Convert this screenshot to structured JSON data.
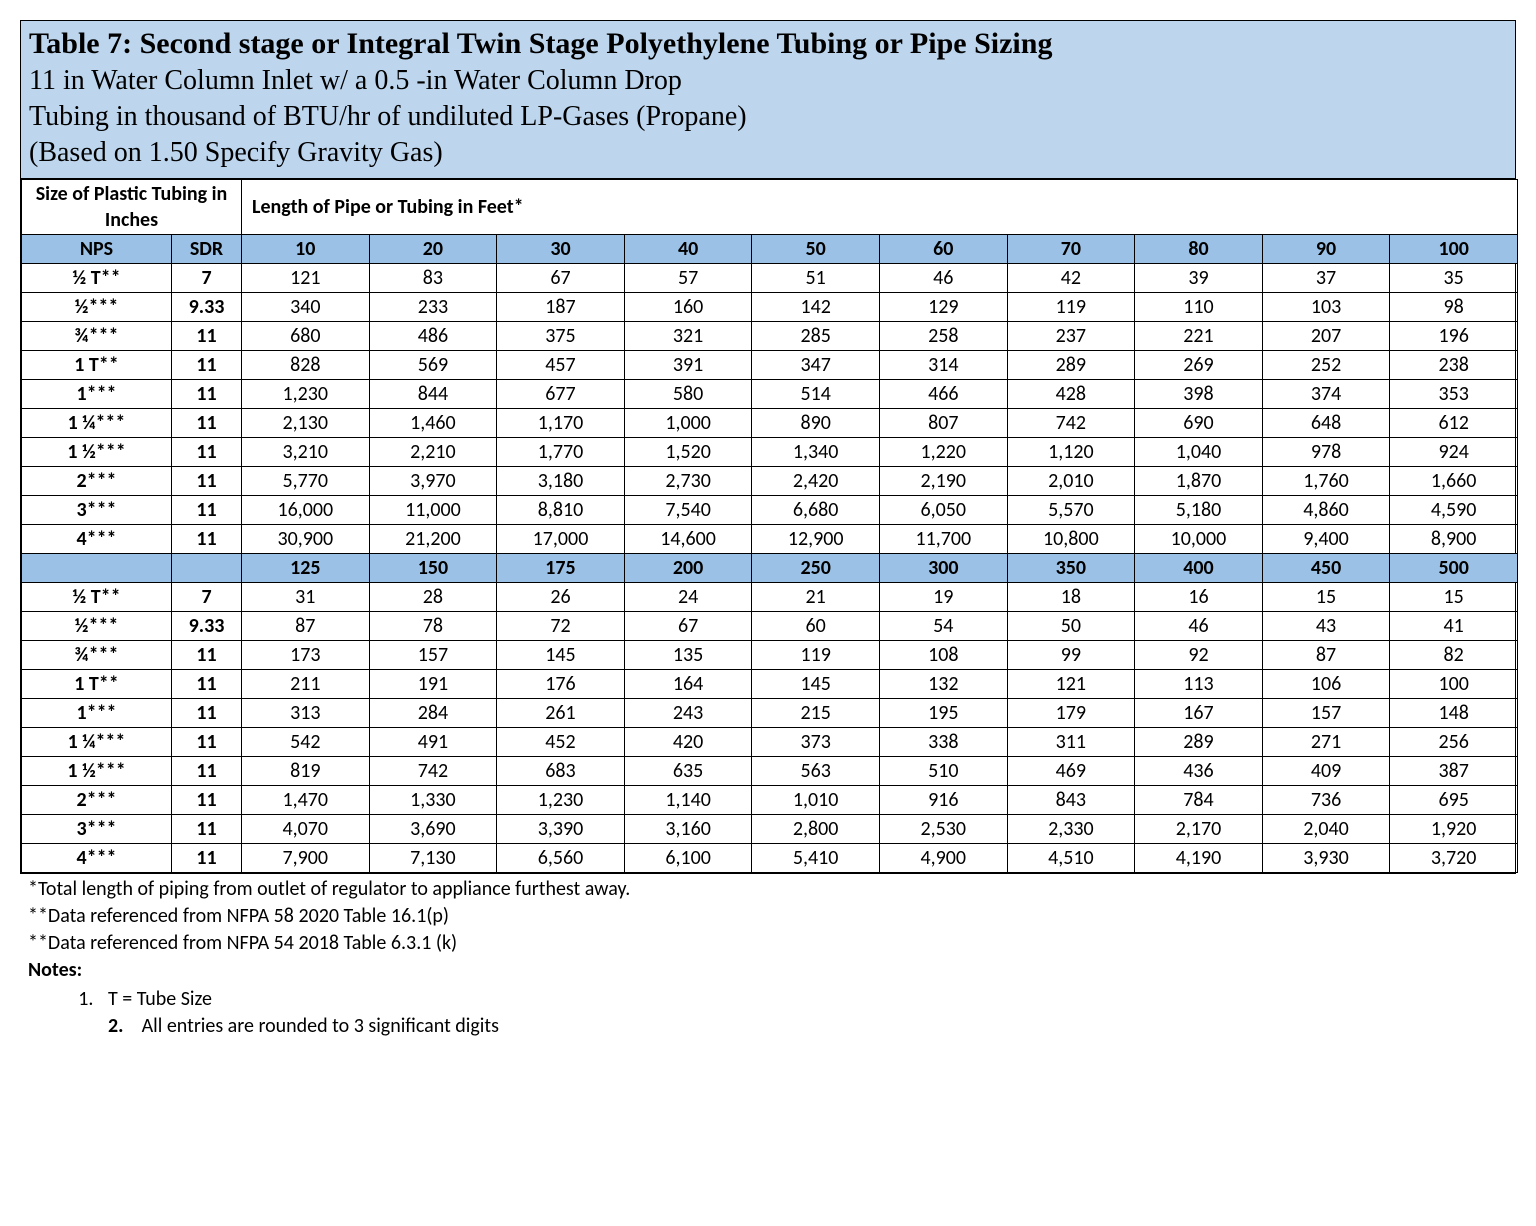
{
  "title": {
    "main": "Table 7: Second stage or Integral Twin Stage Polyethylene Tubing or Pipe Sizing",
    "sub1": "11 in Water Column Inlet w/ a 0.5 -in Water Column Drop",
    "sub2": "Tubing in thousand of BTU/hr of undiluted LP-Gases (Propane)",
    "sub3": "(Based on 1.50 Specify Gravity Gas)"
  },
  "group_headers": {
    "size": "Size of Plastic Tubing in Inches",
    "length": "Length of Pipe or Tubing in Feet*"
  },
  "col_headers": {
    "nps": "NPS",
    "sdr": "SDR",
    "lengths1": [
      "10",
      "20",
      "30",
      "40",
      "50",
      "60",
      "70",
      "80",
      "90",
      "100"
    ],
    "lengths2": [
      "125",
      "150",
      "175",
      "200",
      "250",
      "300",
      "350",
      "400",
      "450",
      "500"
    ]
  },
  "rows1": [
    {
      "nps": "½ T**",
      "sdr": "7",
      "v": [
        "121",
        "83",
        "67",
        "57",
        "51",
        "46",
        "42",
        "39",
        "37",
        "35"
      ]
    },
    {
      "nps": "½***",
      "sdr": "9.33",
      "v": [
        "340",
        "233",
        "187",
        "160",
        "142",
        "129",
        "119",
        "110",
        "103",
        "98"
      ]
    },
    {
      "nps": "¾***",
      "sdr": "11",
      "v": [
        "680",
        "486",
        "375",
        "321",
        "285",
        "258",
        "237",
        "221",
        "207",
        "196"
      ]
    },
    {
      "nps": "1 T**",
      "sdr": "11",
      "v": [
        "828",
        "569",
        "457",
        "391",
        "347",
        "314",
        "289",
        "269",
        "252",
        "238"
      ]
    },
    {
      "nps": "1***",
      "sdr": "11",
      "v": [
        "1,230",
        "844",
        "677",
        "580",
        "514",
        "466",
        "428",
        "398",
        "374",
        "353"
      ]
    },
    {
      "nps": "1 ¼***",
      "sdr": "11",
      "v": [
        "2,130",
        "1,460",
        "1,170",
        "1,000",
        "890",
        "807",
        "742",
        "690",
        "648",
        "612"
      ]
    },
    {
      "nps": "1 ½***",
      "sdr": "11",
      "v": [
        "3,210",
        "2,210",
        "1,770",
        "1,520",
        "1,340",
        "1,220",
        "1,120",
        "1,040",
        "978",
        "924"
      ]
    },
    {
      "nps": "2***",
      "sdr": "11",
      "v": [
        "5,770",
        "3,970",
        "3,180",
        "2,730",
        "2,420",
        "2,190",
        "2,010",
        "1,870",
        "1,760",
        "1,660"
      ]
    },
    {
      "nps": "3***",
      "sdr": "11",
      "v": [
        "16,000",
        "11,000",
        "8,810",
        "7,540",
        "6,680",
        "6,050",
        "5,570",
        "5,180",
        "4,860",
        "4,590"
      ]
    },
    {
      "nps": "4***",
      "sdr": "11",
      "v": [
        "30,900",
        "21,200",
        "17,000",
        "14,600",
        "12,900",
        "11,700",
        "10,800",
        "10,000",
        "9,400",
        "8,900"
      ]
    }
  ],
  "rows2": [
    {
      "nps": "½ T**",
      "sdr": "7",
      "v": [
        "31",
        "28",
        "26",
        "24",
        "21",
        "19",
        "18",
        "16",
        "15",
        "15"
      ]
    },
    {
      "nps": "½***",
      "sdr": "9.33",
      "v": [
        "87",
        "78",
        "72",
        "67",
        "60",
        "54",
        "50",
        "46",
        "43",
        "41"
      ]
    },
    {
      "nps": "¾***",
      "sdr": "11",
      "v": [
        "173",
        "157",
        "145",
        "135",
        "119",
        "108",
        "99",
        "92",
        "87",
        "82"
      ]
    },
    {
      "nps": "1 T**",
      "sdr": "11",
      "v": [
        "211",
        "191",
        "176",
        "164",
        "145",
        "132",
        "121",
        "113",
        "106",
        "100"
      ]
    },
    {
      "nps": "1***",
      "sdr": "11",
      "v": [
        "313",
        "284",
        "261",
        "243",
        "215",
        "195",
        "179",
        "167",
        "157",
        "148"
      ]
    },
    {
      "nps": "1 ¼***",
      "sdr": "11",
      "v": [
        "542",
        "491",
        "452",
        "420",
        "373",
        "338",
        "311",
        "289",
        "271",
        "256"
      ]
    },
    {
      "nps": "1 ½***",
      "sdr": "11",
      "v": [
        "819",
        "742",
        "683",
        "635",
        "563",
        "510",
        "469",
        "436",
        "409",
        "387"
      ]
    },
    {
      "nps": "2***",
      "sdr": "11",
      "v": [
        "1,470",
        "1,330",
        "1,230",
        "1,140",
        "1,010",
        "916",
        "843",
        "784",
        "736",
        "695"
      ]
    },
    {
      "nps": "3***",
      "sdr": "11",
      "v": [
        "4,070",
        "3,690",
        "3,390",
        "3,160",
        "2,800",
        "2,530",
        "2,330",
        "2,170",
        "2,040",
        "1,920"
      ]
    },
    {
      "nps": "4***",
      "sdr": "11",
      "v": [
        "7,900",
        "7,130",
        "6,560",
        "6,100",
        "5,410",
        "4,900",
        "4,510",
        "4,190",
        "3,930",
        "3,720"
      ]
    }
  ],
  "footnotes": {
    "f1": "*Total length of piping from outlet of regulator to appliance furthest away.",
    "f2": "**Data referenced from NFPA 58 2020  Table 16.1(p)",
    "f3": "**Data referenced from NFPA 54 2018 Table 6.3.1 (k)",
    "notes_label": "Notes:",
    "n1": "T = Tube Size",
    "n2": "All entries are rounded to 3 significant digits"
  },
  "style": {
    "header_bg": "#bdd6ee",
    "colhdr_bg": "#9bc2e6",
    "font_body": "Calibri, Arial, sans-serif",
    "font_title": "\"Times New Roman\", serif",
    "title_size_pt": 22,
    "body_size_pt": 15
  }
}
